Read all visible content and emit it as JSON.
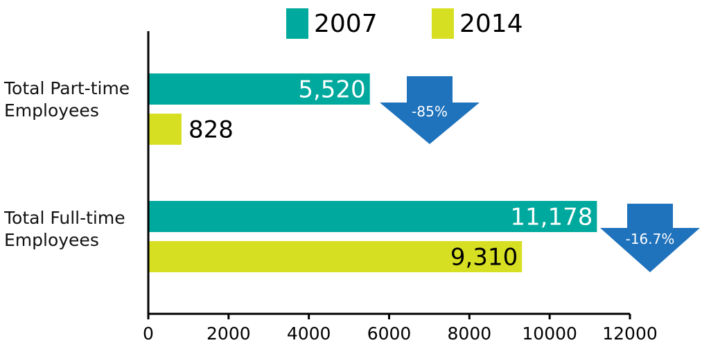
{
  "chart_data": {
    "type": "bar",
    "orientation": "horizontal",
    "categories": [
      "Total Part-time\nEmployees",
      "Total Full-time\nEmployees"
    ],
    "series": [
      {
        "name": "2007",
        "values": [
          5520,
          11178
        ],
        "labels": [
          "5,520",
          "11,178"
        ]
      },
      {
        "name": "2014",
        "values": [
          828,
          9310
        ],
        "labels": [
          "828",
          "9,310"
        ]
      }
    ],
    "colors": {
      "2007": "#00a99d",
      "2014": "#d7df23",
      "arrow": "#1f72bc",
      "axis": "#000000"
    },
    "xlim": [
      0,
      12000
    ],
    "xticks": [
      0,
      2000,
      4000,
      6000,
      8000,
      10000,
      12000
    ],
    "xtick_labels": [
      "0",
      "2000",
      "4000",
      "6000",
      "8000",
      "10000",
      "12000"
    ],
    "legend_position": "top",
    "grid": false,
    "annotations": [
      {
        "text": "-85%",
        "category": "Total Part-time\nEmployees",
        "icon": "down-arrow-icon"
      },
      {
        "text": "-16.7%",
        "category": "Total Full-time\nEmployees",
        "icon": "down-arrow-icon"
      }
    ]
  }
}
